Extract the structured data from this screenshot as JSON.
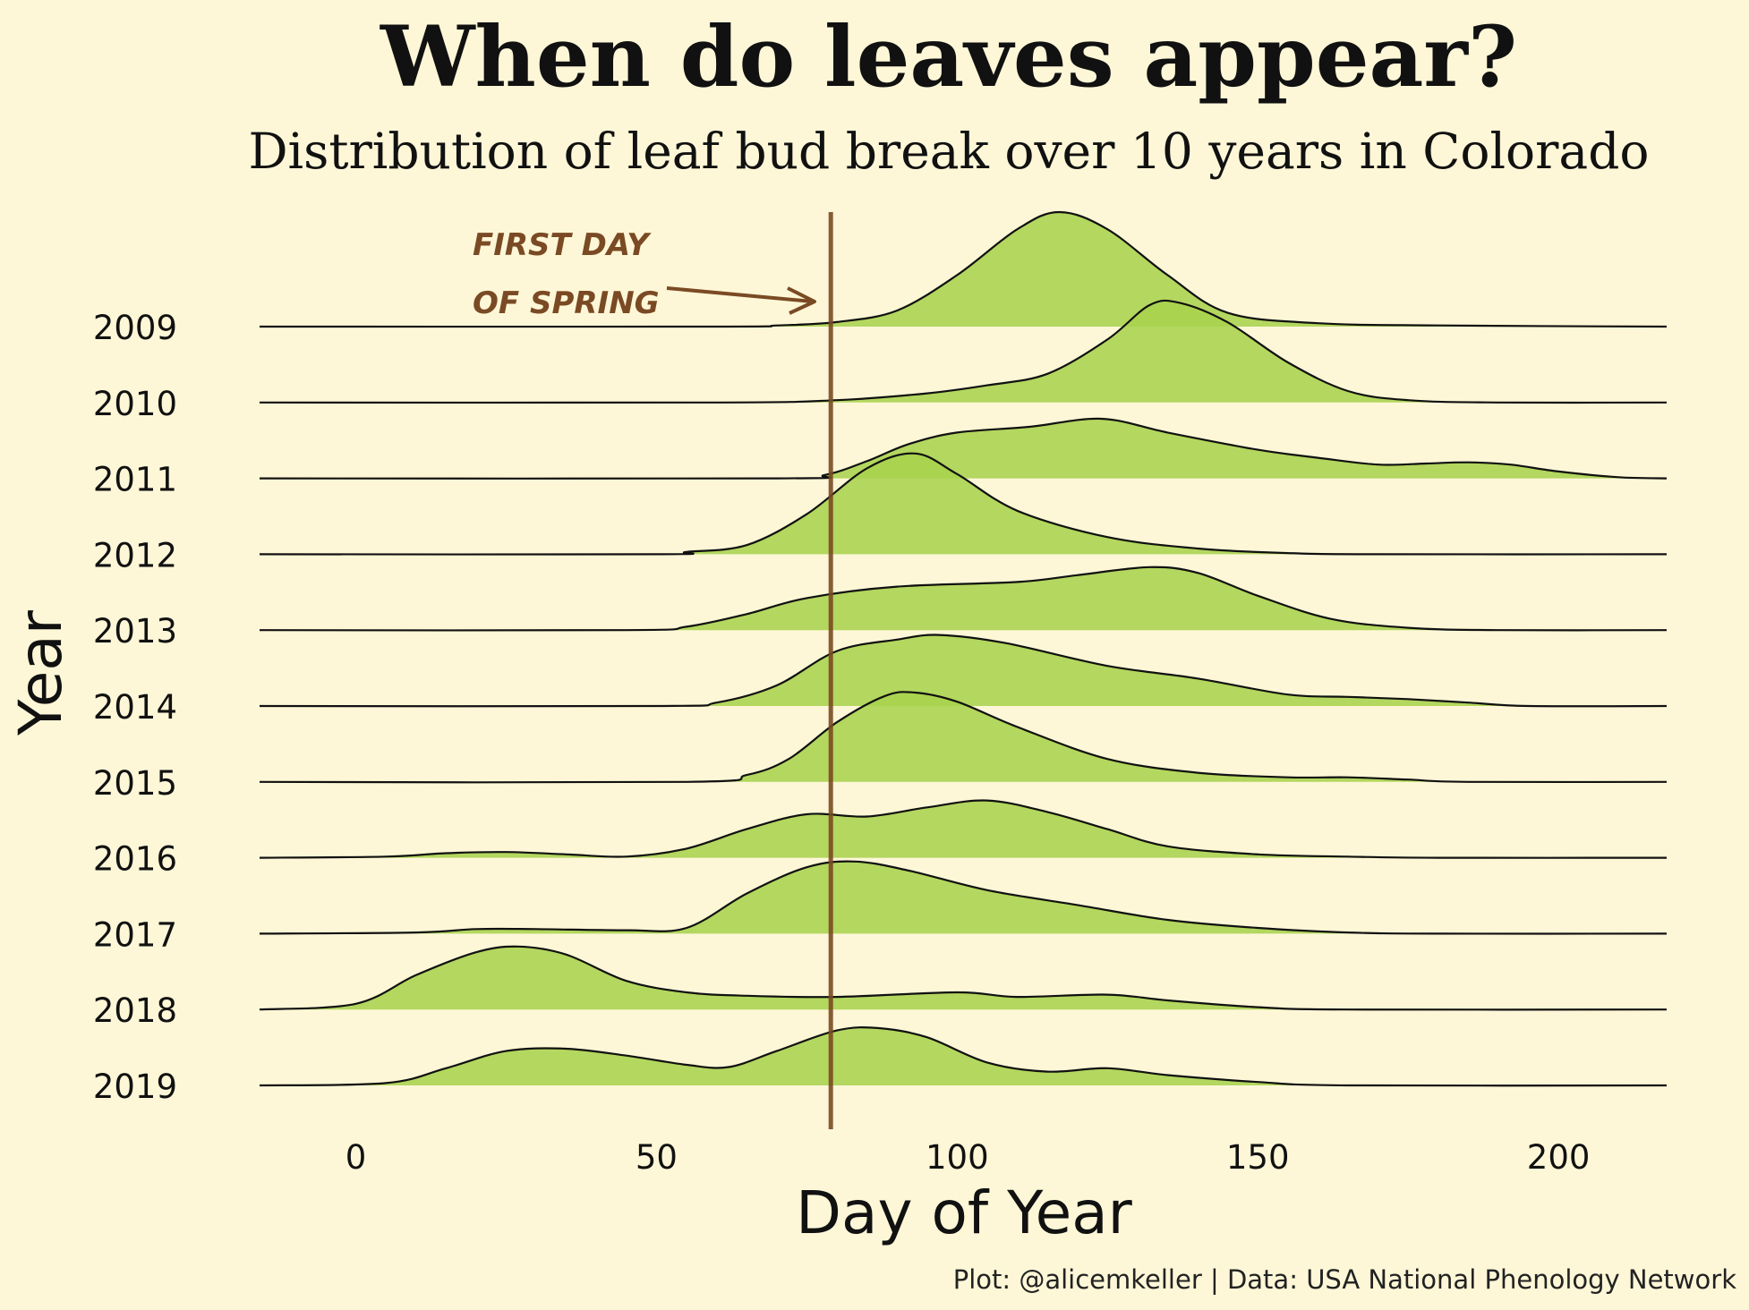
{
  "chart_data": {
    "type": "ridgeline",
    "title": "When do leaves appear?",
    "subtitle": "Distribution of leaf bud break over 10 years in Colorado",
    "xlabel": "Day of Year",
    "ylabel": "Year",
    "xlim": [
      -16,
      218
    ],
    "x_ticks": [
      0,
      50,
      100,
      150,
      200
    ],
    "caption": "Plot: @alicemkeller | Data: USA National Phenology Network",
    "reference_line": {
      "x": 79,
      "color": "#7a4a24"
    },
    "annotation": {
      "lines": [
        "FIRST DAY",
        "OF SPRING"
      ]
    },
    "fill_color": "#a8d34f",
    "line_color": "#111111",
    "background": "#fdf7d7",
    "series": [
      {
        "name": "2009",
        "points": [
          [
            -16,
            0
          ],
          [
            60,
            0
          ],
          [
            70,
            0.01
          ],
          [
            80,
            0.04
          ],
          [
            90,
            0.14
          ],
          [
            100,
            0.45
          ],
          [
            110,
            0.85
          ],
          [
            117,
            1.0
          ],
          [
            125,
            0.85
          ],
          [
            135,
            0.45
          ],
          [
            145,
            0.12
          ],
          [
            160,
            0.03
          ],
          [
            180,
            0.01
          ],
          [
            218,
            0
          ]
        ]
      },
      {
        "name": "2010",
        "points": [
          [
            -16,
            0
          ],
          [
            60,
            0
          ],
          [
            80,
            0.02
          ],
          [
            95,
            0.08
          ],
          [
            105,
            0.15
          ],
          [
            115,
            0.25
          ],
          [
            125,
            0.55
          ],
          [
            132,
            0.85
          ],
          [
            137,
            0.87
          ],
          [
            145,
            0.7
          ],
          [
            155,
            0.35
          ],
          [
            165,
            0.1
          ],
          [
            175,
            0.02
          ],
          [
            190,
            0
          ],
          [
            218,
            0
          ]
        ]
      },
      {
        "name": "2011",
        "points": [
          [
            -16,
            0
          ],
          [
            70,
            0
          ],
          [
            78,
            0.03
          ],
          [
            85,
            0.15
          ],
          [
            92,
            0.3
          ],
          [
            100,
            0.4
          ],
          [
            112,
            0.45
          ],
          [
            124,
            0.52
          ],
          [
            135,
            0.4
          ],
          [
            150,
            0.25
          ],
          [
            160,
            0.18
          ],
          [
            170,
            0.12
          ],
          [
            178,
            0.13
          ],
          [
            185,
            0.14
          ],
          [
            192,
            0.12
          ],
          [
            200,
            0.06
          ],
          [
            210,
            0.01
          ],
          [
            218,
            0
          ]
        ]
      },
      {
        "name": "2012",
        "points": [
          [
            -16,
            0
          ],
          [
            50,
            0
          ],
          [
            55,
            0.02
          ],
          [
            65,
            0.08
          ],
          [
            75,
            0.35
          ],
          [
            85,
            0.75
          ],
          [
            93,
            0.88
          ],
          [
            100,
            0.7
          ],
          [
            110,
            0.38
          ],
          [
            125,
            0.15
          ],
          [
            140,
            0.05
          ],
          [
            155,
            0.01
          ],
          [
            170,
            0
          ],
          [
            218,
            0
          ]
        ]
      },
      {
        "name": "2013",
        "points": [
          [
            -16,
            0
          ],
          [
            45,
            0
          ],
          [
            55,
            0.03
          ],
          [
            65,
            0.14
          ],
          [
            75,
            0.28
          ],
          [
            90,
            0.38
          ],
          [
            110,
            0.42
          ],
          [
            120,
            0.48
          ],
          [
            132,
            0.55
          ],
          [
            140,
            0.5
          ],
          [
            150,
            0.3
          ],
          [
            162,
            0.1
          ],
          [
            175,
            0.02
          ],
          [
            190,
            0
          ],
          [
            218,
            0
          ]
        ]
      },
      {
        "name": "2014",
        "points": [
          [
            -16,
            0
          ],
          [
            50,
            0
          ],
          [
            60,
            0.03
          ],
          [
            70,
            0.18
          ],
          [
            80,
            0.48
          ],
          [
            90,
            0.58
          ],
          [
            97,
            0.62
          ],
          [
            108,
            0.55
          ],
          [
            125,
            0.35
          ],
          [
            140,
            0.24
          ],
          [
            155,
            0.1
          ],
          [
            165,
            0.08
          ],
          [
            175,
            0.06
          ],
          [
            185,
            0.03
          ],
          [
            195,
            0
          ],
          [
            218,
            0
          ]
        ]
      },
      {
        "name": "2015",
        "points": [
          [
            -16,
            0
          ],
          [
            55,
            0
          ],
          [
            65,
            0.06
          ],
          [
            72,
            0.2
          ],
          [
            80,
            0.52
          ],
          [
            88,
            0.75
          ],
          [
            93,
            0.78
          ],
          [
            100,
            0.7
          ],
          [
            110,
            0.48
          ],
          [
            125,
            0.2
          ],
          [
            140,
            0.08
          ],
          [
            155,
            0.04
          ],
          [
            165,
            0.04
          ],
          [
            175,
            0.02
          ],
          [
            185,
            0
          ],
          [
            218,
            0
          ]
        ]
      },
      {
        "name": "2016",
        "points": [
          [
            -16,
            0
          ],
          [
            5,
            0.01
          ],
          [
            15,
            0.04
          ],
          [
            25,
            0.05
          ],
          [
            35,
            0.03
          ],
          [
            45,
            0.01
          ],
          [
            55,
            0.08
          ],
          [
            65,
            0.25
          ],
          [
            75,
            0.38
          ],
          [
            85,
            0.36
          ],
          [
            95,
            0.44
          ],
          [
            105,
            0.5
          ],
          [
            115,
            0.4
          ],
          [
            125,
            0.25
          ],
          [
            135,
            0.1
          ],
          [
            150,
            0.03
          ],
          [
            165,
            0.01
          ],
          [
            180,
            0
          ],
          [
            218,
            0
          ]
        ]
      },
      {
        "name": "2017",
        "points": [
          [
            -16,
            0
          ],
          [
            10,
            0.01
          ],
          [
            20,
            0.04
          ],
          [
            30,
            0.04
          ],
          [
            45,
            0.03
          ],
          [
            55,
            0.05
          ],
          [
            65,
            0.35
          ],
          [
            75,
            0.58
          ],
          [
            83,
            0.63
          ],
          [
            92,
            0.55
          ],
          [
            105,
            0.38
          ],
          [
            120,
            0.25
          ],
          [
            135,
            0.12
          ],
          [
            150,
            0.05
          ],
          [
            165,
            0.01
          ],
          [
            180,
            0
          ],
          [
            218,
            0
          ]
        ]
      },
      {
        "name": "2018",
        "points": [
          [
            -16,
            0
          ],
          [
            0,
            0.05
          ],
          [
            10,
            0.3
          ],
          [
            20,
            0.5
          ],
          [
            27,
            0.55
          ],
          [
            35,
            0.48
          ],
          [
            45,
            0.25
          ],
          [
            55,
            0.15
          ],
          [
            65,
            0.12
          ],
          [
            80,
            0.11
          ],
          [
            100,
            0.15
          ],
          [
            110,
            0.11
          ],
          [
            125,
            0.13
          ],
          [
            135,
            0.08
          ],
          [
            150,
            0.02
          ],
          [
            165,
            0
          ],
          [
            218,
            0
          ]
        ]
      },
      {
        "name": "2019",
        "points": [
          [
            -16,
            0
          ],
          [
            5,
            0.02
          ],
          [
            15,
            0.15
          ],
          [
            25,
            0.3
          ],
          [
            35,
            0.32
          ],
          [
            45,
            0.26
          ],
          [
            55,
            0.18
          ],
          [
            62,
            0.16
          ],
          [
            70,
            0.3
          ],
          [
            80,
            0.48
          ],
          [
            87,
            0.5
          ],
          [
            95,
            0.42
          ],
          [
            105,
            0.2
          ],
          [
            115,
            0.12
          ],
          [
            125,
            0.15
          ],
          [
            135,
            0.09
          ],
          [
            150,
            0.03
          ],
          [
            165,
            0
          ],
          [
            218,
            0
          ]
        ]
      }
    ]
  }
}
